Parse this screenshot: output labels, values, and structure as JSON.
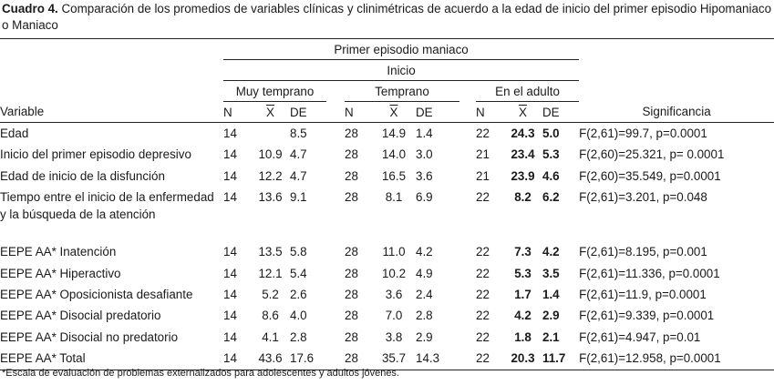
{
  "caption": {
    "label": "Cuadro 4.",
    "text": " Comparación de los promedios de variables clínicas y clinimétricas de acuerdo a la edad de inicio del primer episodio Hipomaniaco o Maniaco"
  },
  "table": {
    "group_header": "Primer episodio maniaco",
    "subgroup_header": "Inicio",
    "columns": {
      "muy_temprano": "Muy temprano",
      "temprano": "Temprano",
      "adulto": "En el adulto"
    },
    "stat_headers": {
      "n": "N",
      "x": "X",
      "de": "DE"
    },
    "variable_header": "Variable",
    "significance_header": "Significancia",
    "rows": [
      {
        "variable": "Edad",
        "mt_n": "14",
        "mt_x": "",
        "mt_de": "8.5",
        "t_n": "28",
        "t_x": "14.9",
        "t_de": "1.4",
        "a_n": "22",
        "a_x": "24.3",
        "a_de": "5.0",
        "sig": "F(2,61)=99.7, p=0.0001"
      },
      {
        "variable": "Inicio del primer episodio depresivo",
        "mt_n": "14",
        "mt_x": "10.9",
        "mt_de": "4.7",
        "t_n": "28",
        "t_x": "14.0",
        "t_de": "3.0",
        "a_n": "21",
        "a_x": "23.4",
        "a_de": "5.3",
        "sig": "F(2,60)=25.321, p= 0.0001"
      },
      {
        "variable": "Edad de inicio de la disfunción",
        "mt_n": "14",
        "mt_x": "12.2",
        "mt_de": "4.7",
        "t_n": "28",
        "t_x": "16.5",
        "t_de": "3.6",
        "a_n": "21",
        "a_x": "23.9",
        "a_de": "4.6",
        "sig": "F(2,60)=35.549, p=0.0001"
      },
      {
        "variable": "Tiempo entre el inicio de la enfermedad y la búsqueda de la atención",
        "mt_n": "14",
        "mt_x": "13.6",
        "mt_de": "9.1",
        "t_n": "28",
        "t_x": "8.1",
        "t_de": "6.9",
        "a_n": "22",
        "a_x": "8.2",
        "a_de": "6.2",
        "sig": "F(2,61)=3.201, p=0.048"
      },
      {
        "variable": "EEPE AA* Inatención",
        "mt_n": "14",
        "mt_x": "13.5",
        "mt_de": "5.8",
        "t_n": "28",
        "t_x": "11.0",
        "t_de": "4.2",
        "a_n": "22",
        "a_x": "7.3",
        "a_de": "4.2",
        "sig": "F(2,61)=8.195, p=0.001"
      },
      {
        "variable": "EEPE AA* Hiperactivo",
        "mt_n": "14",
        "mt_x": "12.1",
        "mt_de": "5.4",
        "t_n": "28",
        "t_x": "10.2",
        "t_de": "4.9",
        "a_n": "22",
        "a_x": "5.3",
        "a_de": "3.5",
        "sig": "F(2,61)=11.336, p=0.0001"
      },
      {
        "variable": "EEPE AA* Oposicionista desafiante",
        "mt_n": "14",
        "mt_x": "5.2",
        "mt_de": "2.6",
        "t_n": "28",
        "t_x": "3.6",
        "t_de": "2.4",
        "a_n": "22",
        "a_x": "1.7",
        "a_de": "1.4",
        "sig": "F(2,61)=11.9, p=0.0001"
      },
      {
        "variable": "EEPE AA*  Disocial predatorio",
        "mt_n": "14",
        "mt_x": "8.6",
        "mt_de": "4.0",
        "t_n": "28",
        "t_x": "7.0",
        "t_de": "2.8",
        "a_n": "22",
        "a_x": "4.2",
        "a_de": "2.9",
        "sig": "F(2,61)=9.339, p=0.0001"
      },
      {
        "variable": "EEPE AA* Disocial no predatorio",
        "mt_n": "14",
        "mt_x": "4.1",
        "mt_de": "2.8",
        "t_n": "28",
        "t_x": "3.8",
        "t_de": "2.9",
        "a_n": "22",
        "a_x": "1.8",
        "a_de": "2.1",
        "sig": "F(2,61)=4.947, p=0.01"
      },
      {
        "variable": "EEPE AA* Total",
        "mt_n": "14",
        "mt_x": "43.6",
        "mt_de": "17.6",
        "t_n": "28",
        "t_x": "35.7",
        "t_de": "14.3",
        "a_n": "22",
        "a_x": "20.3",
        "a_de": "11.7",
        "sig": "F(2,61)=12.958, p=0.0001"
      }
    ]
  },
  "footnote": "*Escala de evaluación de problemas externalizados para adolescentes y adultos jóvenes."
}
